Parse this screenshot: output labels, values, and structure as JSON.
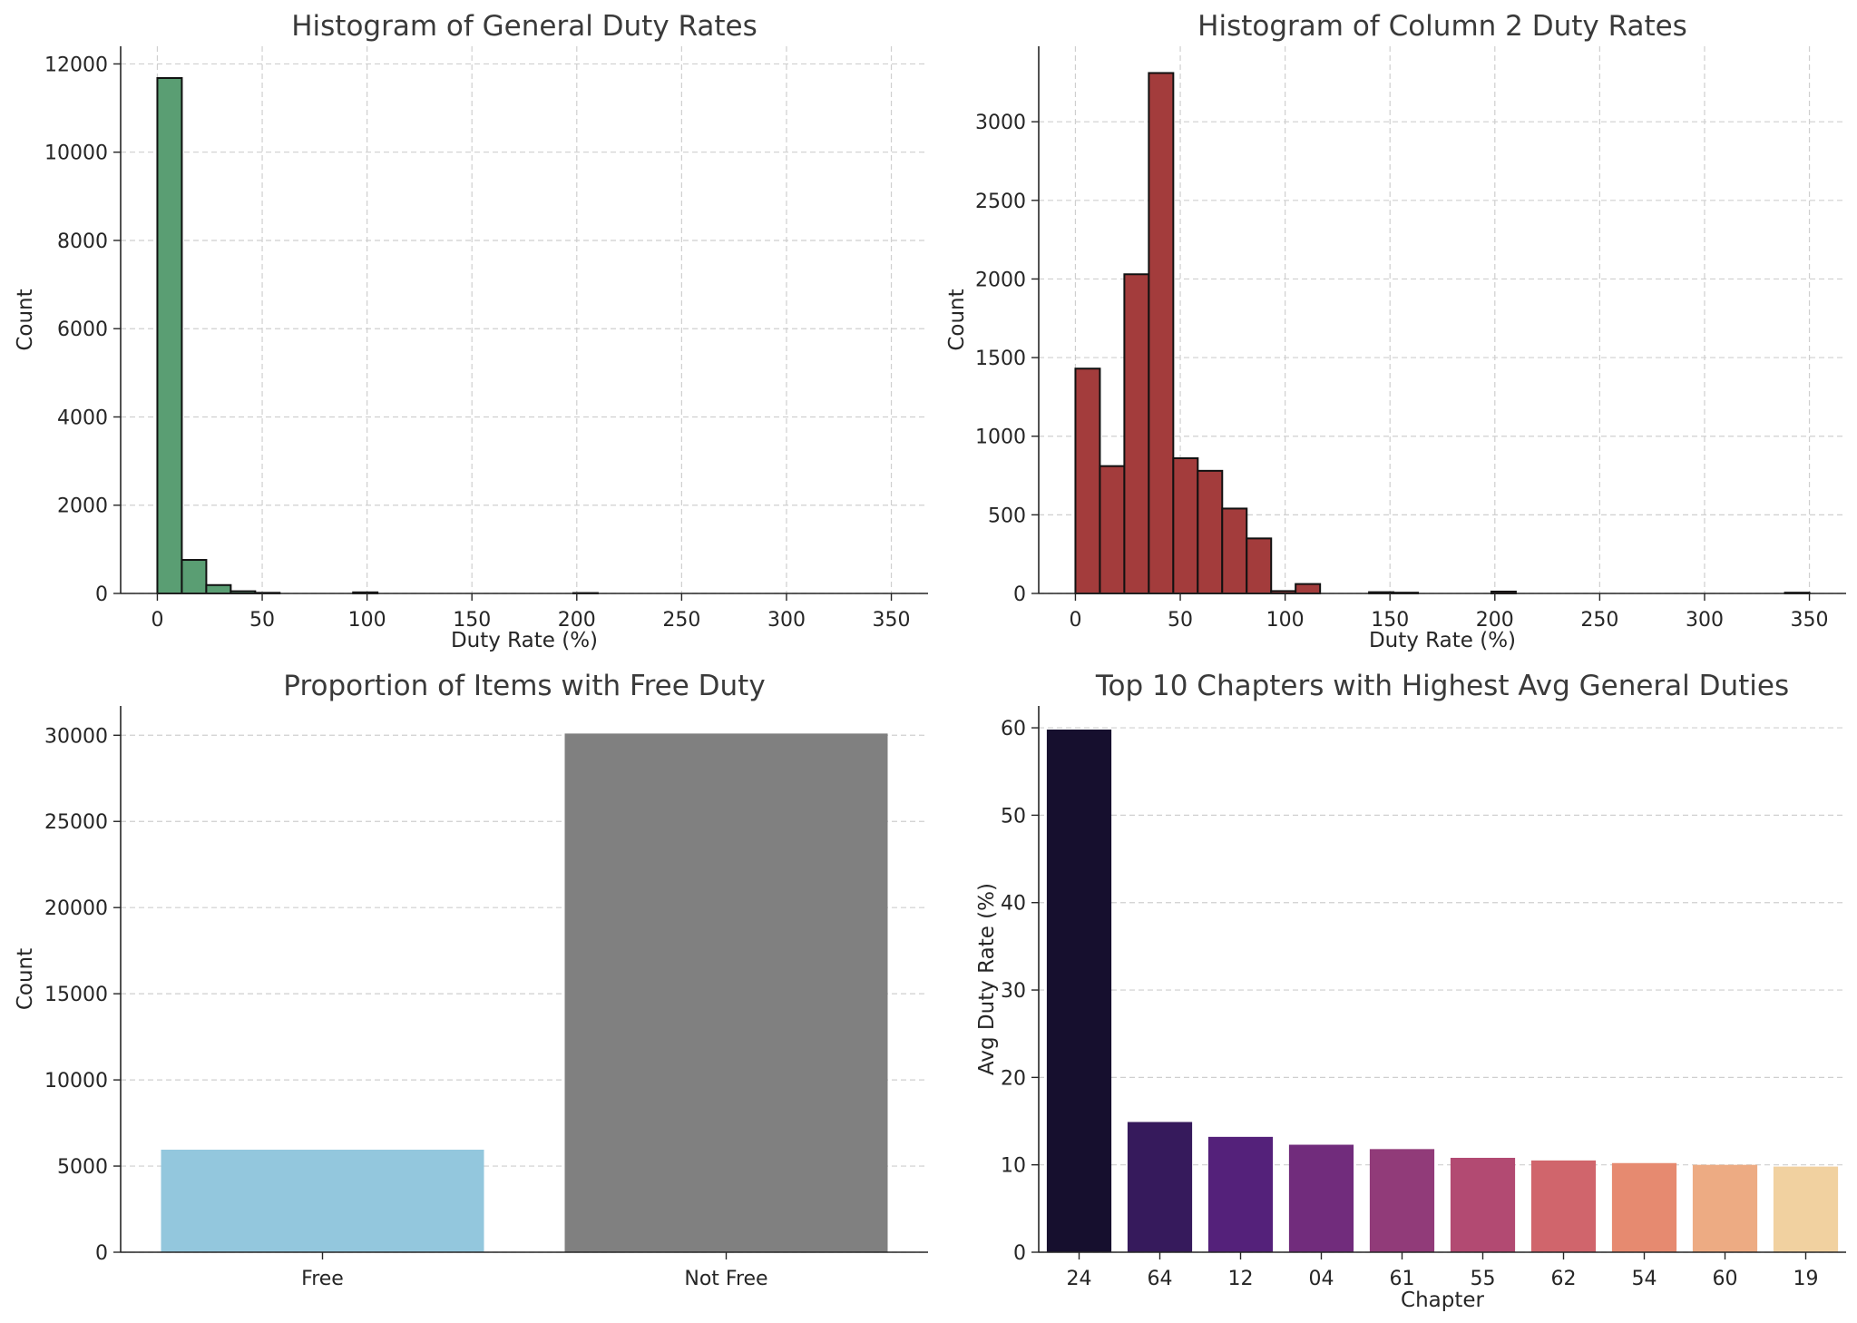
{
  "chart_data": [
    {
      "type": "bar",
      "title": "Histogram of General Duty Rates",
      "xlabel": "Duty Rate (%)",
      "ylabel": "Count",
      "xlim": [
        -17.5,
        367.5
      ],
      "ylim": [
        0,
        12400
      ],
      "xticks": [
        0,
        50,
        100,
        150,
        200,
        250,
        300,
        350
      ],
      "yticks": [
        0,
        2000,
        4000,
        6000,
        8000,
        10000,
        12000
      ],
      "bin_width": 11.67,
      "bins": [
        {
          "x0": 0.0,
          "count": 11680
        },
        {
          "x0": 11.67,
          "count": 760
        },
        {
          "x0": 23.33,
          "count": 190
        },
        {
          "x0": 35.0,
          "count": 50
        },
        {
          "x0": 46.67,
          "count": 15
        },
        {
          "x0": 93.33,
          "count": 25
        },
        {
          "x0": 198.33,
          "count": 10
        }
      ],
      "color": "#5a9e73",
      "grid": true
    },
    {
      "type": "bar",
      "title": "Histogram of Column 2 Duty Rates",
      "xlabel": "Duty Rate (%)",
      "ylabel": "Count",
      "xlim": [
        -17.5,
        367.5
      ],
      "ylim": [
        0,
        3480
      ],
      "xticks": [
        0,
        50,
        100,
        150,
        200,
        250,
        300,
        350
      ],
      "yticks": [
        0,
        500,
        1000,
        1500,
        2000,
        2500,
        3000
      ],
      "bin_width": 11.67,
      "bins": [
        {
          "x0": 0.0,
          "count": 1430
        },
        {
          "x0": 11.67,
          "count": 810
        },
        {
          "x0": 23.33,
          "count": 2030
        },
        {
          "x0": 35.0,
          "count": 3310
        },
        {
          "x0": 46.67,
          "count": 860
        },
        {
          "x0": 58.33,
          "count": 780
        },
        {
          "x0": 70.0,
          "count": 540
        },
        {
          "x0": 81.67,
          "count": 350
        },
        {
          "x0": 93.33,
          "count": 15
        },
        {
          "x0": 105.0,
          "count": 60
        },
        {
          "x0": 140.0,
          "count": 8
        },
        {
          "x0": 151.67,
          "count": 5
        },
        {
          "x0": 198.33,
          "count": 12
        },
        {
          "x0": 338.33,
          "count": 5
        }
      ],
      "color": "#a33c3c",
      "grid": true
    },
    {
      "type": "bar",
      "title": "Proportion of Items with Free Duty",
      "xlabel": "",
      "ylabel": "Count",
      "categories": [
        "Free",
        "Not Free"
      ],
      "values": [
        5950,
        30100
      ],
      "colors": [
        "#93c7dd",
        "#808080"
      ],
      "ylim": [
        0,
        31700
      ],
      "yticks": [
        0,
        5000,
        10000,
        15000,
        20000,
        25000,
        30000
      ],
      "grid": true
    },
    {
      "type": "bar",
      "title": "Top 10 Chapters with Highest Avg General Duties",
      "xlabel": "Chapter",
      "ylabel": "Avg Duty Rate (%)",
      "categories": [
        "24",
        "64",
        "12",
        "04",
        "61",
        "55",
        "62",
        "54",
        "60",
        "19"
      ],
      "values": [
        59.8,
        14.9,
        13.2,
        12.3,
        11.8,
        10.8,
        10.5,
        10.2,
        10.0,
        9.8
      ],
      "colors": [
        "#160f2e",
        "#361a5c",
        "#54217a",
        "#712c7c",
        "#913b79",
        "#b24a72",
        "#d0656c",
        "#e68a70",
        "#edab83",
        "#f1d1a0"
      ],
      "ylim": [
        0,
        62.5
      ],
      "yticks": [
        0,
        10,
        20,
        30,
        40,
        50,
        60
      ],
      "grid": true
    }
  ]
}
